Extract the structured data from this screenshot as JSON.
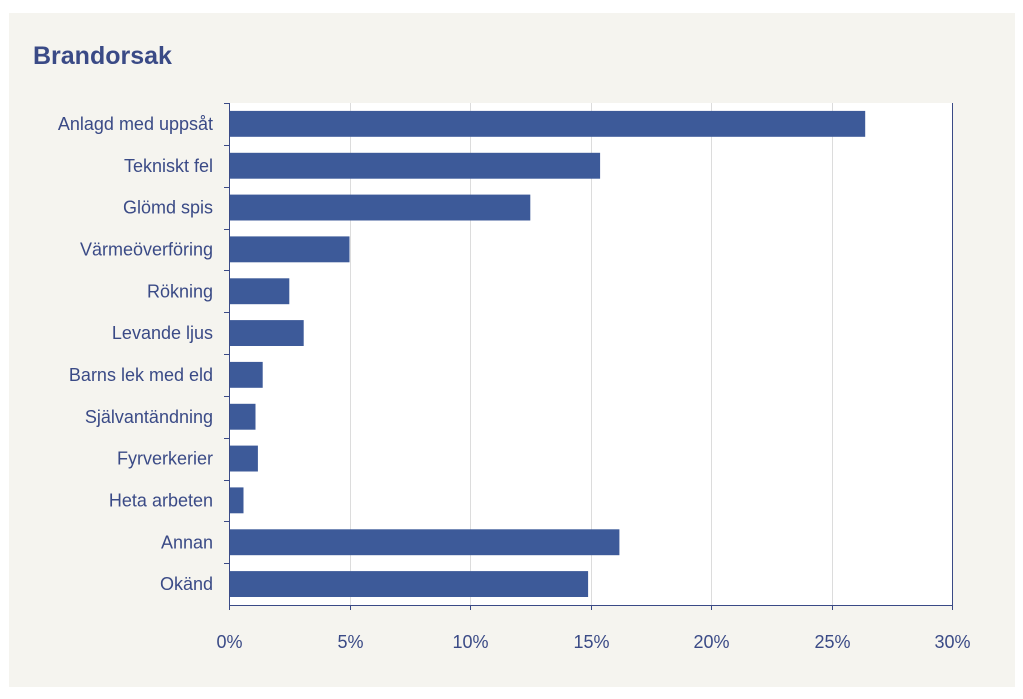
{
  "chart_data": {
    "type": "bar",
    "orientation": "horizontal",
    "title": "Brandorsak",
    "xlabel": "",
    "ylabel": "",
    "xlim": [
      0,
      30
    ],
    "x_ticks": [
      "0%",
      "5%",
      "10%",
      "15%",
      "20%",
      "25%",
      "30%"
    ],
    "grid": "vertical",
    "legend": "none",
    "categories": [
      "Anlagd med uppsåt",
      "Tekniskt fel",
      "Glömd spis",
      "Värmeöverföring",
      "Rökning",
      "Levande ljus",
      "Barns lek med eld",
      "Självantändning",
      "Fyrverkerier",
      "Heta arbeten",
      "Annan",
      "Okänd"
    ],
    "values": [
      26.4,
      15.4,
      12.5,
      5.0,
      2.5,
      3.1,
      1.4,
      1.1,
      1.2,
      0.6,
      16.2,
      14.9
    ],
    "colors": {
      "bar": "#3d5a99",
      "text": "#3a4a86",
      "axis": "#3a4a86",
      "grid": "#dcdcdc",
      "plot_background": "#ffffff",
      "panel_background": "#f5f4ef"
    }
  }
}
